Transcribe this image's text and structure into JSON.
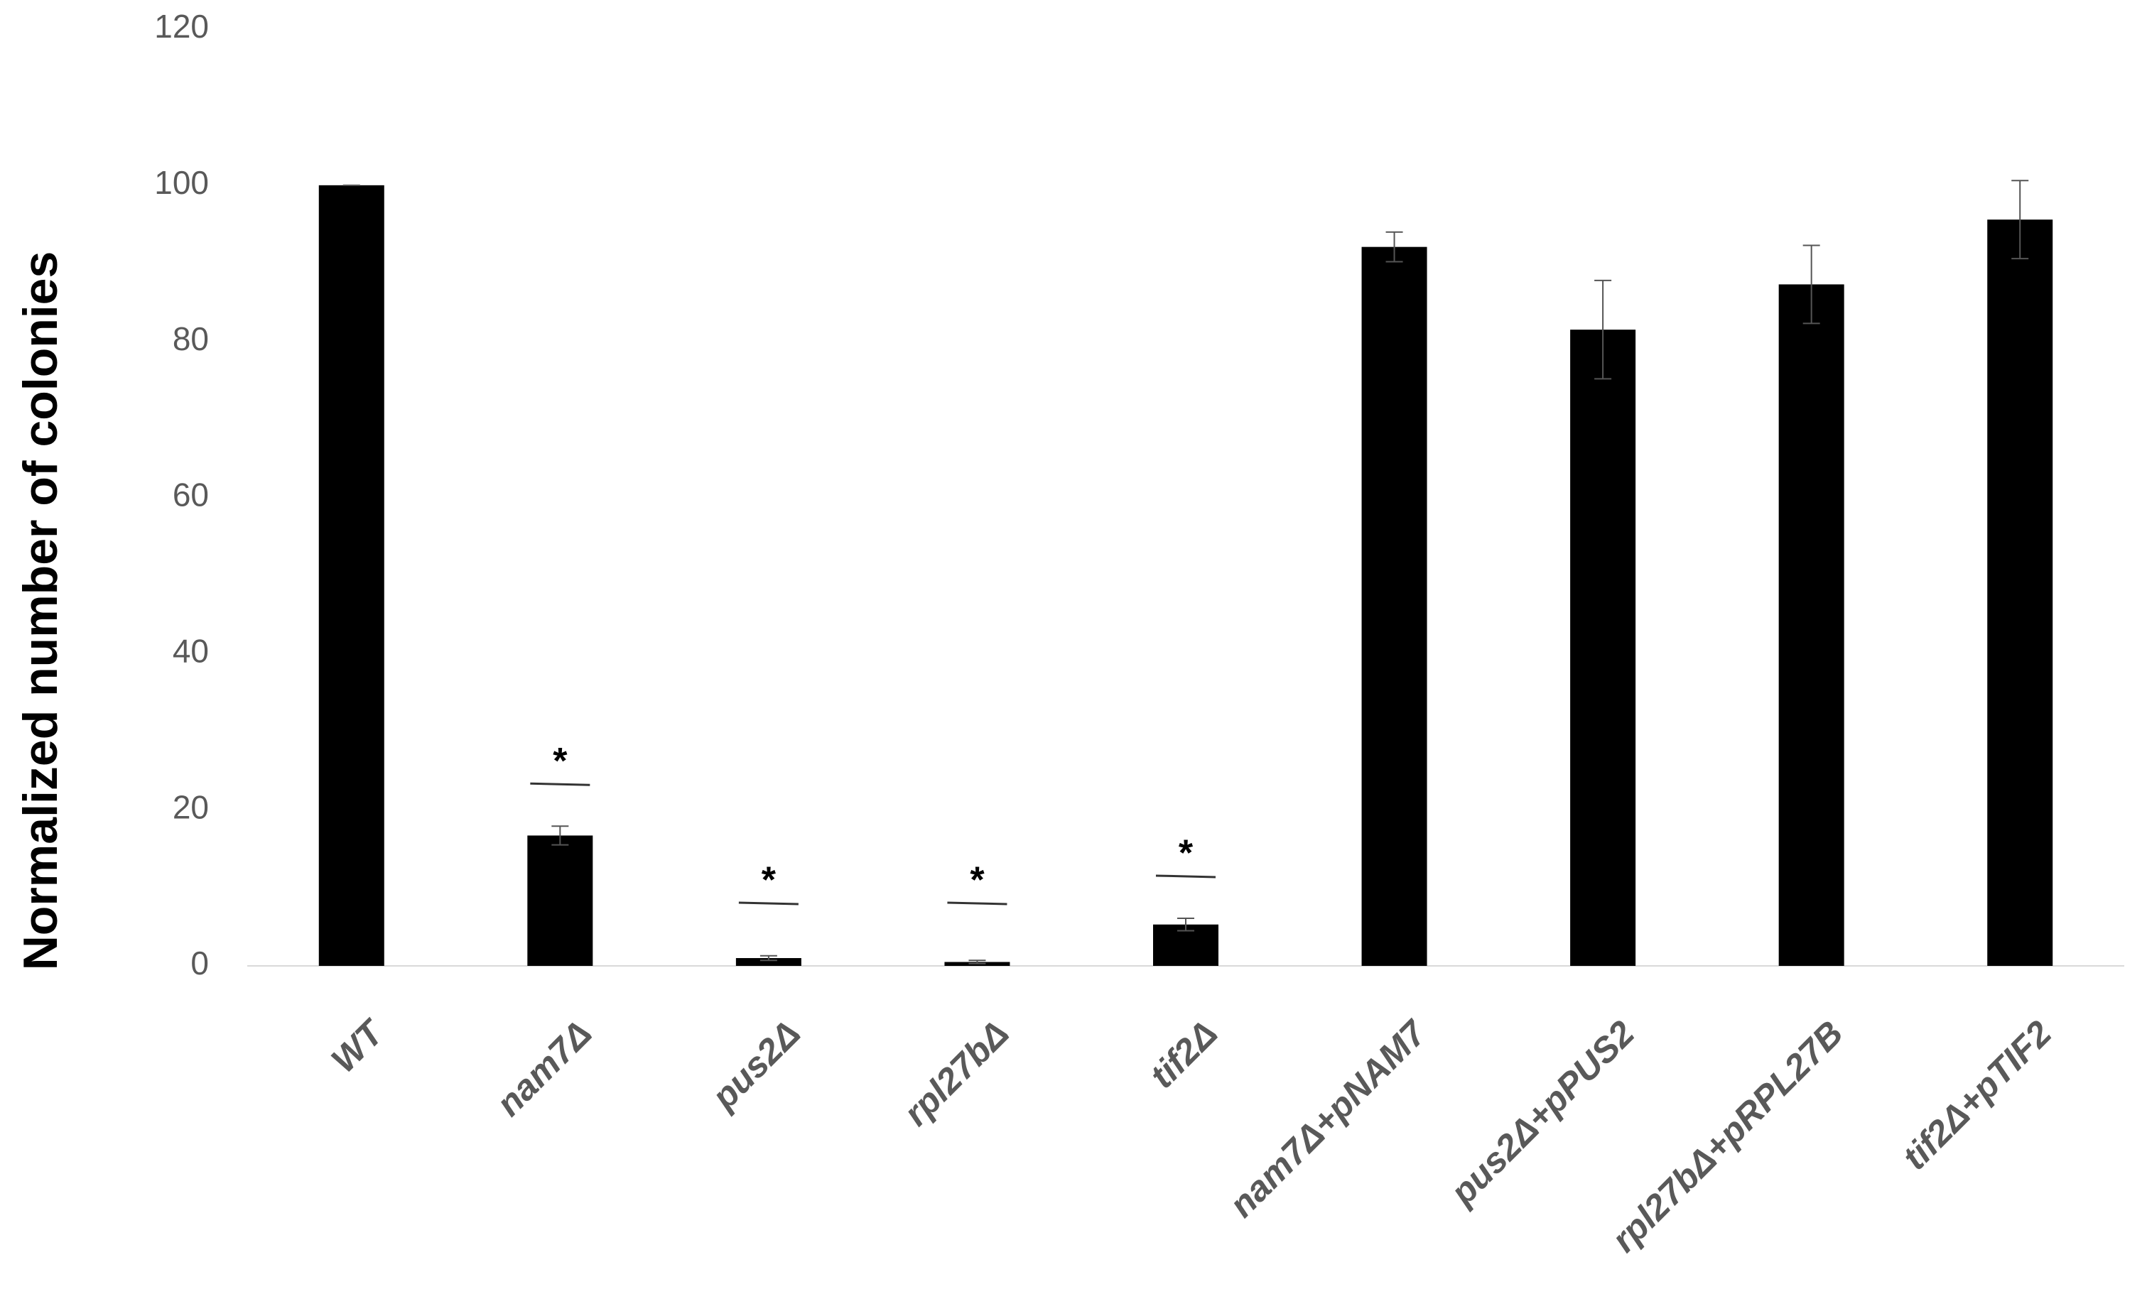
{
  "chart_data": {
    "type": "bar",
    "y_label": "Normalized number of colonies",
    "categories": [
      "WT",
      "nam7Δ",
      "pus2Δ",
      "rpl27bΔ",
      "tif2Δ",
      "nam7Δ+pNAM7",
      "pus2Δ+pPUS2",
      "rpl27bΔ+pRPL27B",
      "tif2Δ+pTIF2"
    ],
    "values": [
      100,
      16.7,
      1.0,
      0.5,
      5.3,
      92.1,
      81.5,
      87.3,
      95.6
    ],
    "errors": [
      0,
      1.2,
      0.3,
      0.2,
      0.8,
      1.9,
      6.3,
      5.0,
      5.0
    ],
    "annotations": [
      null,
      "*",
      "*",
      "*",
      "*",
      null,
      null,
      null,
      null
    ],
    "color": "#000000",
    "ylim": [
      0,
      120
    ],
    "yticks": [
      0,
      20,
      40,
      60,
      80,
      100,
      120
    ],
    "grid": false
  }
}
